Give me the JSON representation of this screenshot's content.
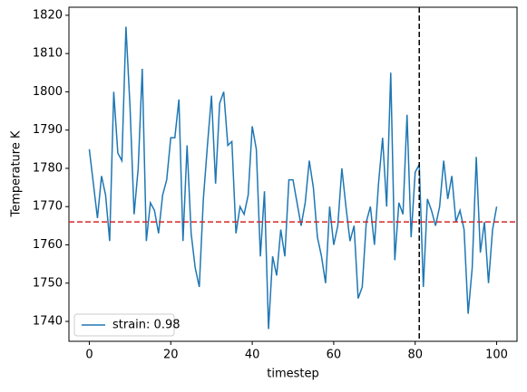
{
  "chart_data": {
    "type": "line",
    "x_label": "timestep",
    "y_label": "Temperature K",
    "x": [
      0,
      1,
      2,
      3,
      4,
      5,
      6,
      7,
      8,
      9,
      10,
      11,
      12,
      13,
      14,
      15,
      16,
      17,
      18,
      19,
      20,
      21,
      22,
      23,
      24,
      25,
      26,
      27,
      28,
      29,
      30,
      31,
      32,
      33,
      34,
      35,
      36,
      37,
      38,
      39,
      40,
      41,
      42,
      43,
      44,
      45,
      46,
      47,
      48,
      49,
      50,
      51,
      52,
      53,
      54,
      55,
      56,
      57,
      58,
      59,
      60,
      61,
      62,
      63,
      64,
      65,
      66,
      67,
      68,
      69,
      70,
      71,
      72,
      73,
      74,
      75,
      76,
      77,
      78,
      79,
      80,
      81,
      82,
      83,
      84,
      85,
      86,
      87,
      88,
      89,
      90,
      91,
      92,
      93,
      94,
      95,
      96,
      97,
      98,
      99,
      100
    ],
    "series": [
      {
        "name": "strain: 0.98",
        "color": "#1f77b4",
        "values": [
          1785,
          1776,
          1767,
          1778,
          1773,
          1761,
          1800,
          1784,
          1782,
          1817,
          1796,
          1768,
          1780,
          1806,
          1761,
          1771,
          1769,
          1763,
          1773,
          1777,
          1788,
          1788,
          1798,
          1761,
          1786,
          1763,
          1754,
          1749,
          1772,
          1786,
          1799,
          1776,
          1797,
          1800,
          1786,
          1787,
          1763,
          1770,
          1768,
          1773,
          1791,
          1785,
          1757,
          1774,
          1738,
          1757,
          1752,
          1764,
          1757,
          1777,
          1777,
          1771,
          1765,
          1771,
          1782,
          1775,
          1762,
          1757,
          1750,
          1770,
          1760,
          1765,
          1780,
          1770,
          1761,
          1765,
          1746,
          1749,
          1766,
          1770,
          1760,
          1776,
          1788,
          1770,
          1805,
          1756,
          1771,
          1768,
          1794,
          1762,
          1779,
          1781,
          1749,
          1772,
          1769,
          1765,
          1770,
          1782,
          1772,
          1778,
          1766,
          1769,
          1764,
          1742,
          1754,
          1783,
          1758,
          1766,
          1750,
          1764,
          1770
        ]
      }
    ],
    "hline": {
      "value": 1766,
      "color": "#d62728"
    },
    "vline": {
      "value": 81,
      "color": "#000000"
    },
    "xlim": [
      -5,
      105
    ],
    "ylim": [
      1734.8,
      1822.1
    ],
    "xticks": [
      0,
      20,
      40,
      60,
      80,
      100
    ],
    "yticks": [
      1740,
      1750,
      1760,
      1770,
      1780,
      1790,
      1800,
      1810,
      1820
    ],
    "legend": "lower left",
    "grid": false
  }
}
